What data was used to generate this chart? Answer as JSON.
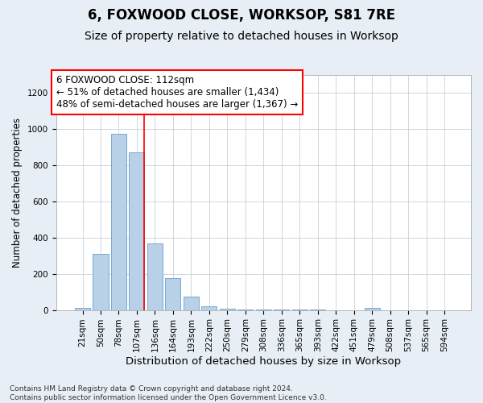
{
  "title": "6, FOXWOOD CLOSE, WORKSOP, S81 7RE",
  "subtitle": "Size of property relative to detached houses in Worksop",
  "xlabel": "Distribution of detached houses by size in Worksop",
  "ylabel": "Number of detached properties",
  "categories": [
    "21sqm",
    "50sqm",
    "78sqm",
    "107sqm",
    "136sqm",
    "164sqm",
    "193sqm",
    "222sqm",
    "250sqm",
    "279sqm",
    "308sqm",
    "336sqm",
    "365sqm",
    "393sqm",
    "422sqm",
    "451sqm",
    "479sqm",
    "508sqm",
    "537sqm",
    "565sqm",
    "594sqm"
  ],
  "values": [
    10,
    310,
    975,
    870,
    370,
    175,
    75,
    22,
    8,
    3,
    2,
    1,
    1,
    1,
    0,
    0,
    12,
    0,
    0,
    0,
    0
  ],
  "bar_color": "#b8d0e8",
  "bar_edge_color": "#6aa0cb",
  "vline_x_index": 3,
  "vline_color": "red",
  "annotation_text": "6 FOXWOOD CLOSE: 112sqm\n← 51% of detached houses are smaller (1,434)\n48% of semi-detached houses are larger (1,367) →",
  "annotation_box_color": "white",
  "annotation_box_edge_color": "red",
  "ylim": [
    0,
    1300
  ],
  "yticks": [
    0,
    200,
    400,
    600,
    800,
    1000,
    1200
  ],
  "bg_color": "#e8eef5",
  "plot_bg_color": "white",
  "footer": "Contains HM Land Registry data © Crown copyright and database right 2024.\nContains public sector information licensed under the Open Government Licence v3.0.",
  "title_fontsize": 12,
  "subtitle_fontsize": 10,
  "xlabel_fontsize": 9.5,
  "ylabel_fontsize": 8.5,
  "tick_fontsize": 7.5,
  "annotation_fontsize": 8.5,
  "footer_fontsize": 6.5
}
